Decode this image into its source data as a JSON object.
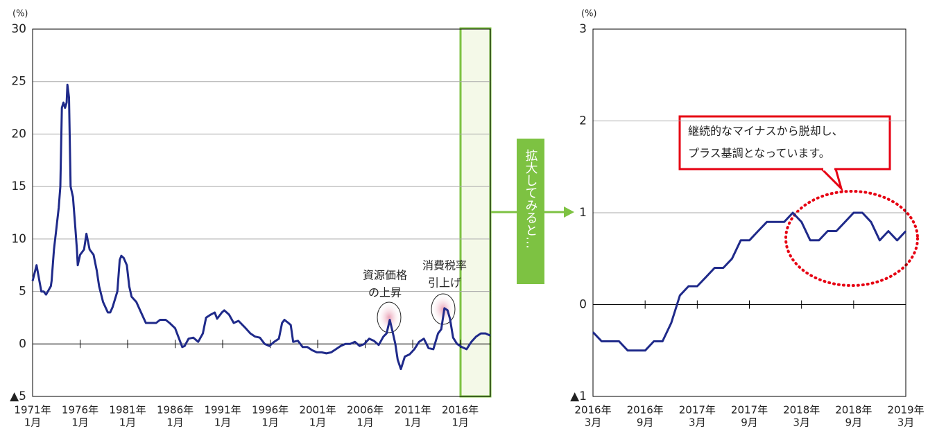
{
  "zoom_label": "拡大してみると…",
  "chart_data": [
    {
      "type": "line",
      "y_unit": "(%)",
      "color": "#1f2a8a",
      "x": [
        "1971-01",
        "1971-06",
        "1971-12",
        "1972-03",
        "1972-06",
        "1972-12",
        "1973-01",
        "1973-04",
        "1973-07",
        "1973-10",
        "1973-12",
        "1974-02",
        "1974-04",
        "1974-06",
        "1974-08",
        "1974-09",
        "1974-11",
        "1975-01",
        "1975-04",
        "1975-07",
        "1975-09",
        "1975-10",
        "1976-01",
        "1976-06",
        "1976-09",
        "1977-01",
        "1977-06",
        "1977-10",
        "1978-01",
        "1978-06",
        "1978-12",
        "1979-03",
        "1979-06",
        "1979-12",
        "1980-03",
        "1980-05",
        "1980-08",
        "1980-12",
        "1981-03",
        "1981-06",
        "1981-12",
        "1982-06",
        "1982-12",
        "1983-06",
        "1984-01",
        "1984-06",
        "1985-01",
        "1985-06",
        "1986-01",
        "1986-06",
        "1986-10",
        "1987-01",
        "1987-06",
        "1987-12",
        "1988-06",
        "1988-12",
        "1989-04",
        "1989-10",
        "1990-03",
        "1990-06",
        "1990-12",
        "1991-03",
        "1991-09",
        "1992-03",
        "1992-09",
        "1993-06",
        "1993-12",
        "1994-06",
        "1994-12",
        "1995-06",
        "1995-12",
        "1996-06",
        "1996-12",
        "1997-04",
        "1997-07",
        "1997-12",
        "1998-03",
        "1998-06",
        "1998-12",
        "1999-06",
        "1999-12",
        "2000-06",
        "2000-12",
        "2001-06",
        "2001-12",
        "2002-06",
        "2002-12",
        "2003-06",
        "2003-12",
        "2004-06",
        "2004-12",
        "2005-06",
        "2005-12",
        "2006-06",
        "2006-12",
        "2007-06",
        "2007-12",
        "2008-04",
        "2008-08",
        "2008-12",
        "2009-03",
        "2009-06",
        "2009-10",
        "2010-03",
        "2010-09",
        "2011-03",
        "2011-09",
        "2012-03",
        "2012-09",
        "2013-03",
        "2013-09",
        "2014-01",
        "2014-05",
        "2014-09",
        "2014-12",
        "2015-04",
        "2015-09",
        "2016-03",
        "2016-09",
        "2017-03",
        "2017-09",
        "2018-03",
        "2018-09",
        "2019-03"
      ],
      "values": [
        6.0,
        7.5,
        5.0,
        5.0,
        4.7,
        5.5,
        6.0,
        9.0,
        11.0,
        13.0,
        15.0,
        22.5,
        23.0,
        22.5,
        23.0,
        24.7,
        23.5,
        15.0,
        14.0,
        11.0,
        9.0,
        7.5,
        8.5,
        9.0,
        10.5,
        9.0,
        8.5,
        7.0,
        5.5,
        4.0,
        3.0,
        3.0,
        3.5,
        5.0,
        8.0,
        8.4,
        8.2,
        7.5,
        5.5,
        4.5,
        4.0,
        3.0,
        2.0,
        2.0,
        2.0,
        2.3,
        2.3,
        2.0,
        1.5,
        0.5,
        -0.3,
        -0.2,
        0.5,
        0.6,
        0.2,
        1.0,
        2.5,
        2.8,
        3.0,
        2.4,
        3.0,
        3.2,
        2.8,
        2.0,
        2.2,
        1.5,
        1.0,
        0.7,
        0.6,
        0.0,
        -0.2,
        0.2,
        0.5,
        2.0,
        2.3,
        2.0,
        1.8,
        0.2,
        0.3,
        -0.3,
        -0.3,
        -0.6,
        -0.8,
        -0.8,
        -0.9,
        -0.8,
        -0.5,
        -0.2,
        0.0,
        0.0,
        0.2,
        -0.2,
        0.0,
        0.5,
        0.3,
        -0.1,
        0.7,
        1.0,
        2.3,
        1.0,
        0.0,
        -1.5,
        -2.4,
        -1.2,
        -1.0,
        -0.5,
        0.2,
        0.5,
        -0.4,
        -0.5,
        1.0,
        1.4,
        3.4,
        3.2,
        2.4,
        0.6,
        0.0,
        -0.3,
        -0.5,
        0.2,
        0.7,
        1.0,
        1.0,
        0.8
      ],
      "xlim": [
        "1971-01",
        "2019-03"
      ],
      "xticks": [
        {
          "value": "1971-01",
          "label": [
            "1971年",
            "1月"
          ]
        },
        {
          "value": "1976-01",
          "label": [
            "1976年",
            "1月"
          ]
        },
        {
          "value": "1981-01",
          "label": [
            "1981年",
            "1月"
          ]
        },
        {
          "value": "1986-01",
          "label": [
            "1986年",
            "1月"
          ]
        },
        {
          "value": "1991-01",
          "label": [
            "1991年",
            "1月"
          ]
        },
        {
          "value": "1996-01",
          "label": [
            "1996年",
            "1月"
          ]
        },
        {
          "value": "2001-01",
          "label": [
            "2001年",
            "1月"
          ]
        },
        {
          "value": "2006-01",
          "label": [
            "2006年",
            "1月"
          ]
        },
        {
          "value": "2011-01",
          "label": [
            "2011年",
            "1月"
          ]
        },
        {
          "value": "2016-01",
          "label": [
            "2016年",
            "1月"
          ]
        }
      ],
      "ylim": [
        -5,
        30
      ],
      "yticks": [
        {
          "value": -5,
          "label": "▲5"
        },
        0,
        5,
        10,
        15,
        20,
        25,
        30
      ],
      "grid": true,
      "annotations": [
        [
          "資源価格",
          "の上昇"
        ],
        [
          "消費税率",
          "引上げ"
        ]
      ]
    },
    {
      "type": "line",
      "y_unit": "(%)",
      "color": "#1f2a8a",
      "x": [
        "2016-03",
        "2016-04",
        "2016-05",
        "2016-06",
        "2016-07",
        "2016-08",
        "2016-09",
        "2016-10",
        "2016-11",
        "2016-12",
        "2017-01",
        "2017-02",
        "2017-03",
        "2017-04",
        "2017-05",
        "2017-06",
        "2017-07",
        "2017-08",
        "2017-09",
        "2017-10",
        "2017-11",
        "2017-12",
        "2018-01",
        "2018-02",
        "2018-03",
        "2018-04",
        "2018-05",
        "2018-06",
        "2018-07",
        "2018-08",
        "2018-09",
        "2018-10",
        "2018-11",
        "2018-12",
        "2019-01",
        "2019-02",
        "2019-03"
      ],
      "values": [
        -0.3,
        -0.4,
        -0.4,
        -0.4,
        -0.5,
        -0.5,
        -0.5,
        -0.4,
        -0.4,
        -0.2,
        0.1,
        0.2,
        0.2,
        0.3,
        0.4,
        0.4,
        0.5,
        0.7,
        0.7,
        0.8,
        0.9,
        0.9,
        0.9,
        1.0,
        0.9,
        0.7,
        0.7,
        0.8,
        0.8,
        0.9,
        1.0,
        1.0,
        0.9,
        0.7,
        0.8,
        0.7,
        0.8
      ],
      "xlim": [
        "2016-03",
        "2019-03"
      ],
      "xticks": [
        {
          "value": "2016-03",
          "label": [
            "2016年",
            "3月"
          ]
        },
        {
          "value": "2016-09",
          "label": [
            "2016年",
            "9月"
          ]
        },
        {
          "value": "2017-03",
          "label": [
            "2017年",
            "3月"
          ]
        },
        {
          "value": "2017-09",
          "label": [
            "2017年",
            "9月"
          ]
        },
        {
          "value": "2018-03",
          "label": [
            "2018年",
            "3月"
          ]
        },
        {
          "value": "2018-09",
          "label": [
            "2018年",
            "9月"
          ]
        },
        {
          "value": "2019-03",
          "label": [
            "2019年",
            "3月"
          ]
        }
      ],
      "ylim": [
        -1,
        3
      ],
      "yticks": [
        {
          "value": -1,
          "label": "▲1"
        },
        0,
        1,
        2,
        3
      ],
      "grid": true,
      "annotations": [
        [
          "継続的なマイナスから脱却し、",
          "プラス基調となっています。"
        ]
      ]
    }
  ]
}
